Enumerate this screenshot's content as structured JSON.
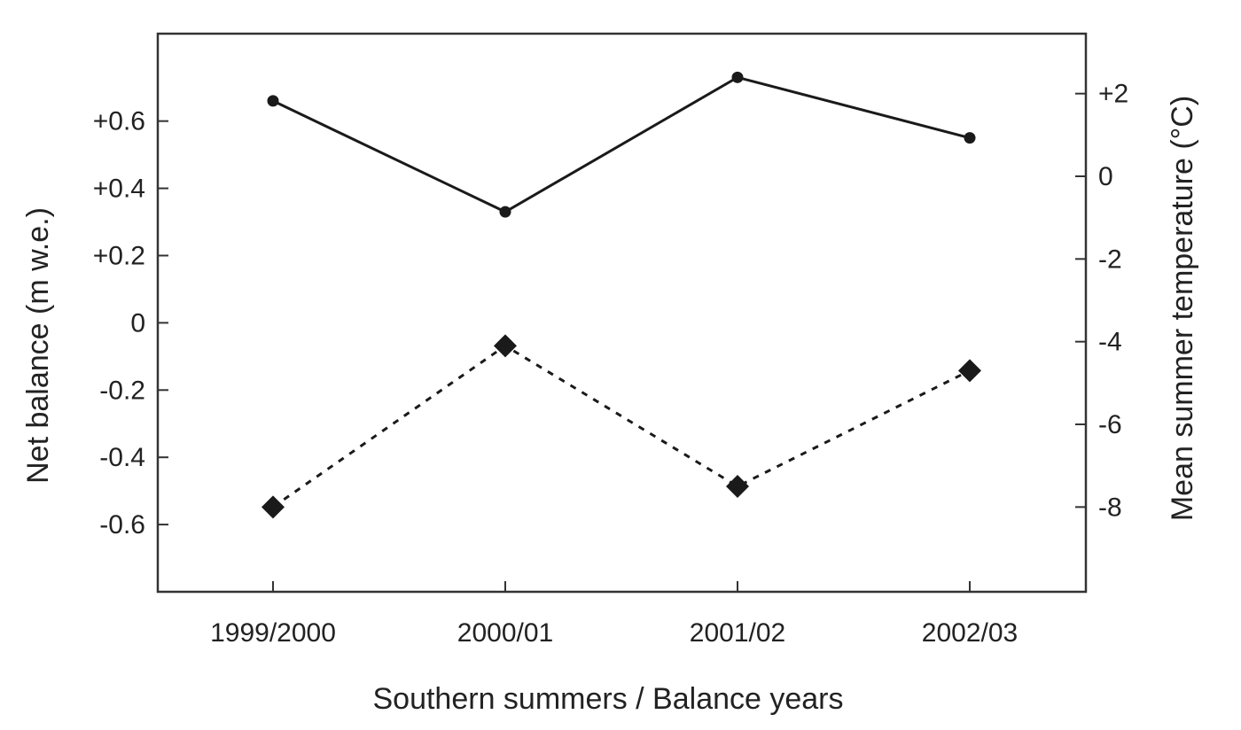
{
  "chart_data": {
    "type": "line",
    "title": "",
    "xlabel": "Southern summers / Balance years",
    "ylabel_left": "Net balance (m w.e.)",
    "ylabel_right": "Mean summer temperature (°C)",
    "categories": [
      "1999/2000",
      "2000/01",
      "2001/02",
      "2002/03"
    ],
    "left_axis": {
      "ylim": [
        -0.8,
        0.86
      ],
      "ticks": [
        0.6,
        0.4,
        0.2,
        0,
        -0.2,
        -0.4,
        -0.6
      ],
      "tick_labels": [
        "+0.6",
        "+0.4",
        "+0.2",
        "0",
        "-0.2",
        "-0.4",
        "-0.6"
      ]
    },
    "right_axis": {
      "ylim": [
        -10.05,
        3.45
      ],
      "ticks": [
        2,
        0,
        -2,
        -4,
        -6,
        -8
      ],
      "tick_labels": [
        "+2",
        "0",
        "-2",
        "-4",
        "-6",
        "-8"
      ]
    },
    "series": [
      {
        "axis": "left",
        "style": "solid",
        "marker": "circle",
        "values": [
          0.66,
          0.33,
          0.73,
          0.55
        ]
      },
      {
        "axis": "right",
        "style": "dotted",
        "marker": "diamond",
        "values": [
          -8.0,
          -4.1,
          -7.5,
          -4.7
        ]
      }
    ],
    "grid": false,
    "legend": "none",
    "colors": {
      "line": "#1a1a1a",
      "axis": "#333333"
    }
  }
}
